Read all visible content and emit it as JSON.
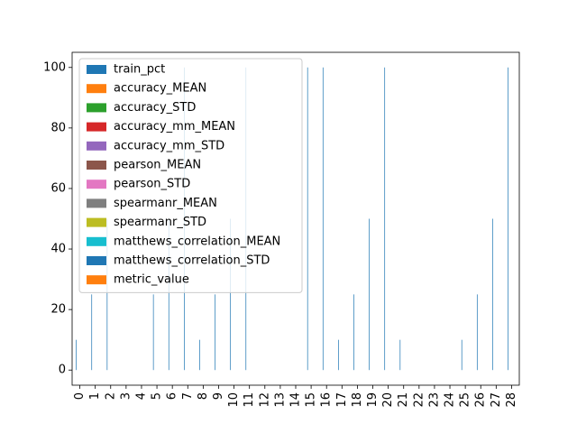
{
  "chart_data": {
    "type": "bar",
    "categories": [
      "0",
      "1",
      "2",
      "3",
      "4",
      "5",
      "6",
      "7",
      "8",
      "9",
      "10",
      "11",
      "12",
      "13",
      "14",
      "15",
      "16",
      "17",
      "18",
      "19",
      "20",
      "21",
      "22",
      "23",
      "24",
      "25",
      "26",
      "27",
      "28"
    ],
    "series": [
      {
        "name": "train_pct",
        "color": "#1f77b4",
        "values": [
          10,
          25,
          50,
          null,
          null,
          25,
          50,
          100,
          10,
          25,
          50,
          100,
          null,
          null,
          null,
          100,
          100,
          10,
          25,
          50,
          100,
          10,
          null,
          null,
          null,
          10,
          25,
          50,
          100
        ]
      },
      {
        "name": "accuracy_MEAN",
        "color": "#ff7f0e",
        "values": [
          null,
          null,
          null,
          null,
          null,
          null,
          null,
          null,
          null,
          null,
          null,
          null,
          null,
          null,
          null,
          null,
          null,
          null,
          null,
          null,
          null,
          null,
          null,
          null,
          null,
          null,
          null,
          null,
          null
        ]
      },
      {
        "name": "accuracy_STD",
        "color": "#2ca02c",
        "values": [
          null,
          null,
          null,
          null,
          null,
          null,
          null,
          null,
          null,
          null,
          null,
          null,
          null,
          null,
          null,
          null,
          null,
          null,
          null,
          null,
          null,
          null,
          null,
          null,
          null,
          null,
          null,
          null,
          null
        ]
      },
      {
        "name": "accuracy_mm_MEAN",
        "color": "#d62728",
        "values": [
          null,
          null,
          null,
          null,
          null,
          null,
          null,
          null,
          null,
          null,
          null,
          null,
          null,
          null,
          null,
          null,
          null,
          null,
          null,
          null,
          null,
          null,
          null,
          null,
          null,
          null,
          null,
          null,
          null
        ]
      },
      {
        "name": "accuracy_mm_STD",
        "color": "#9467bd",
        "values": [
          null,
          null,
          null,
          null,
          null,
          null,
          null,
          null,
          null,
          null,
          null,
          null,
          null,
          null,
          null,
          null,
          null,
          null,
          null,
          null,
          null,
          null,
          null,
          null,
          null,
          null,
          null,
          null,
          null
        ]
      },
      {
        "name": "pearson_MEAN",
        "color": "#8c564b",
        "values": [
          null,
          null,
          null,
          null,
          null,
          null,
          null,
          null,
          null,
          null,
          null,
          null,
          null,
          null,
          null,
          null,
          null,
          null,
          null,
          null,
          null,
          null,
          null,
          null,
          null,
          null,
          null,
          null,
          null
        ]
      },
      {
        "name": "pearson_STD",
        "color": "#e377c2",
        "values": [
          null,
          null,
          null,
          null,
          null,
          null,
          null,
          null,
          null,
          null,
          null,
          null,
          null,
          null,
          null,
          null,
          null,
          null,
          null,
          null,
          null,
          null,
          null,
          null,
          null,
          null,
          null,
          null,
          null
        ]
      },
      {
        "name": "spearmanr_MEAN",
        "color": "#7f7f7f",
        "values": [
          null,
          null,
          null,
          null,
          null,
          null,
          null,
          null,
          null,
          null,
          null,
          null,
          null,
          null,
          null,
          null,
          null,
          null,
          null,
          null,
          null,
          null,
          null,
          null,
          null,
          null,
          null,
          null,
          null
        ]
      },
      {
        "name": "spearmanr_STD",
        "color": "#bcbd22",
        "values": [
          null,
          null,
          null,
          null,
          null,
          null,
          null,
          null,
          null,
          null,
          null,
          null,
          null,
          null,
          null,
          null,
          null,
          null,
          null,
          null,
          null,
          null,
          null,
          null,
          null,
          null,
          null,
          null,
          null
        ]
      },
      {
        "name": "matthews_correlation_MEAN",
        "color": "#17becf",
        "values": [
          null,
          null,
          null,
          null,
          null,
          null,
          null,
          null,
          null,
          null,
          null,
          null,
          null,
          null,
          null,
          null,
          null,
          null,
          null,
          null,
          null,
          null,
          null,
          null,
          null,
          null,
          null,
          null,
          null
        ]
      },
      {
        "name": "matthews_correlation_STD",
        "color": "#1f77b4",
        "values": [
          null,
          null,
          null,
          null,
          null,
          null,
          null,
          null,
          null,
          null,
          null,
          null,
          null,
          null,
          null,
          null,
          null,
          null,
          null,
          null,
          null,
          null,
          null,
          null,
          null,
          null,
          null,
          null,
          null
        ]
      },
      {
        "name": "metric_value",
        "color": "#ff7f0e",
        "values": [
          null,
          null,
          null,
          null,
          null,
          null,
          null,
          null,
          null,
          null,
          null,
          null,
          null,
          null,
          null,
          null,
          null,
          null,
          null,
          null,
          null,
          null,
          null,
          null,
          null,
          null,
          null,
          null,
          null
        ]
      }
    ],
    "ylim": [
      -5,
      105
    ],
    "yticks": [
      0,
      20,
      40,
      60,
      80,
      100
    ],
    "legend": "upper left"
  }
}
